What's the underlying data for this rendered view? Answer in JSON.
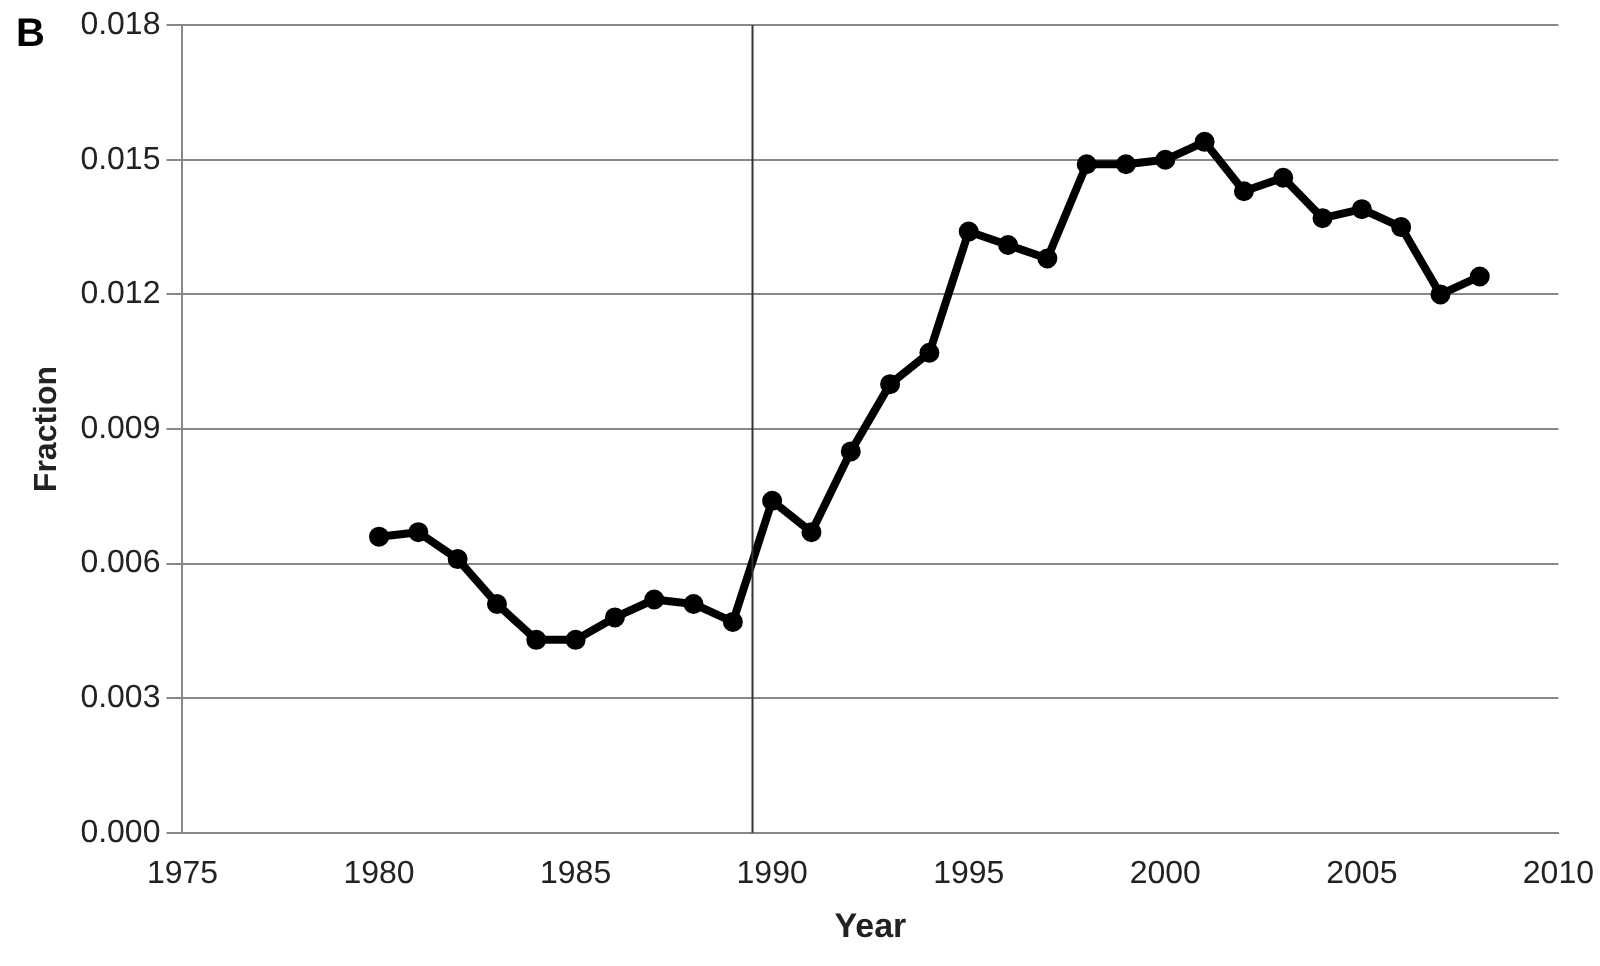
{
  "chart_data": {
    "type": "line",
    "xlabel": "Year",
    "ylabel": "Fraction",
    "annotations": [
      "B"
    ],
    "x": [
      1980,
      1981,
      1982,
      1983,
      1984,
      1985,
      1986,
      1987,
      1988,
      1989,
      1990,
      1991,
      1992,
      1993,
      1994,
      1995,
      1996,
      1997,
      1998,
      1999,
      2000,
      2001,
      2002,
      2003,
      2004,
      2005,
      2006,
      2007,
      2008
    ],
    "series": [
      {
        "color": "#000000",
        "values": [
          0.0066,
          0.0067,
          0.0061,
          0.0051,
          0.0043,
          0.0043,
          0.0048,
          0.0052,
          0.0051,
          0.0047,
          0.0074,
          0.0067,
          0.0085,
          0.01,
          0.0107,
          0.0134,
          0.0131,
          0.0128,
          0.0149,
          0.0149,
          0.015,
          0.0154,
          0.0143,
          0.0146,
          0.0137,
          0.0139,
          0.0135,
          0.012,
          0.0124
        ]
      }
    ],
    "xlim": [
      1975,
      2010
    ],
    "xticks": [
      1975,
      1980,
      1985,
      1990,
      1995,
      2000,
      2005,
      2010
    ],
    "ylim": [
      0,
      0.018
    ],
    "yticks": [
      {
        "value": 0,
        "label": "0.000"
      },
      {
        "value": 0.003,
        "label": "0.003"
      },
      {
        "value": 0.006,
        "label": "0.006"
      },
      {
        "value": 0.009,
        "label": "0.009"
      },
      {
        "value": 0.012,
        "label": "0.012"
      },
      {
        "value": 0.015,
        "label": "0.015"
      },
      {
        "value": 0.018,
        "label": "0.018"
      }
    ],
    "grid": "y",
    "legend": false,
    "marker": "circle",
    "line_style": "solid",
    "ref_lines": [
      {
        "axis": "x",
        "value": 1989.5,
        "color": "#333333"
      }
    ]
  }
}
